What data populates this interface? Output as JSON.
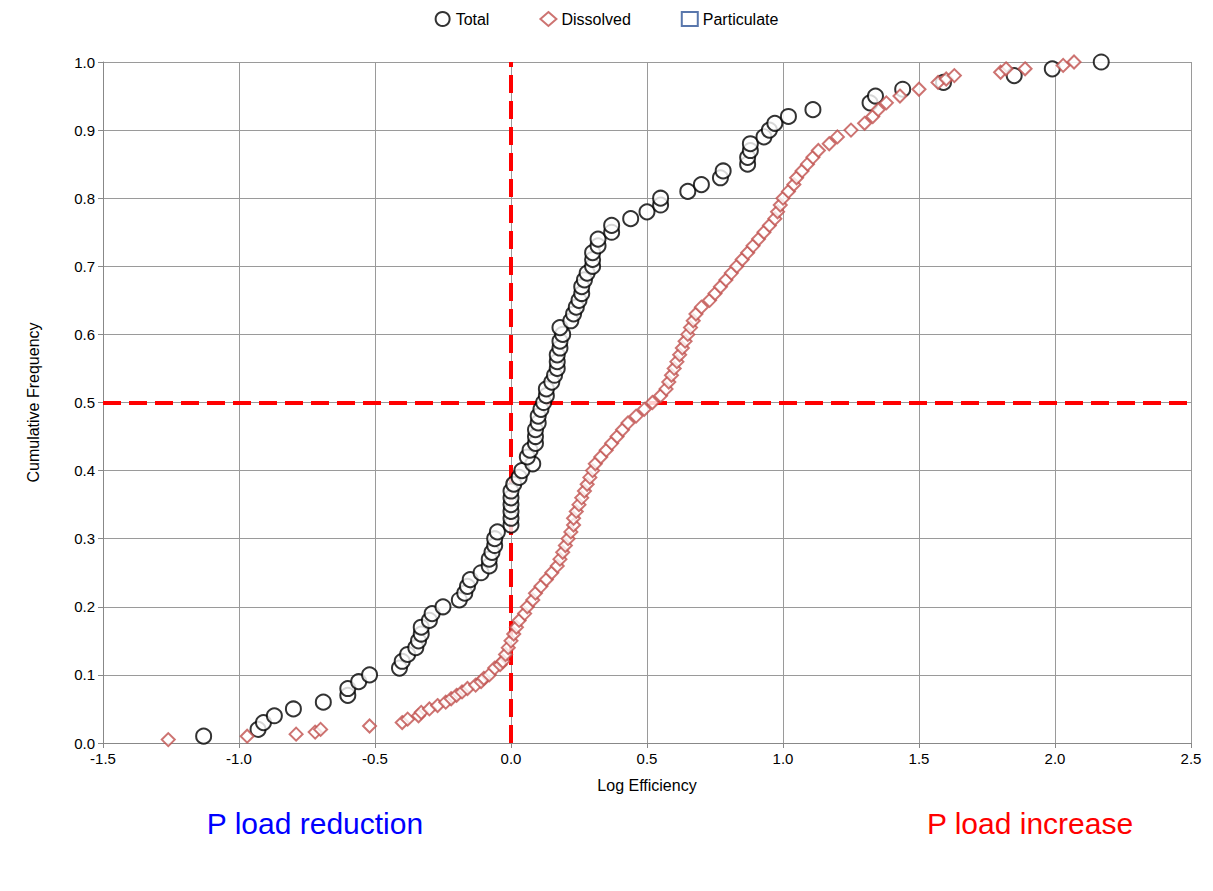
{
  "chart_data": {
    "type": "scatter",
    "xlabel": "Log Efficiency",
    "ylabel": "Cumulative Frequency",
    "xlim": [
      -1.5,
      2.5
    ],
    "xticks": [
      -1.5,
      {
        "value": -1.0,
        "label": "-1.0"
      },
      -0.5,
      {
        "value": 0.0,
        "label": "0.0"
      },
      0.5,
      {
        "value": 1.0,
        "label": "1.0"
      },
      1.5,
      {
        "value": 2.0,
        "label": "2.0"
      },
      2.5
    ],
    "ylim": [
      0,
      1
    ],
    "yticks": [
      {
        "value": 0.0,
        "label": "0.0"
      },
      0.1,
      0.2,
      0.3,
      0.4,
      0.5,
      0.6,
      0.7,
      0.8,
      0.9,
      {
        "value": 1.0,
        "label": "1.0"
      }
    ],
    "grid": true,
    "legend": "top",
    "reference_lines": {
      "x": [
        0
      ],
      "y": [
        0.5
      ]
    },
    "annotations": [
      {
        "text": "P load reduction",
        "color": "#0000ff"
      },
      {
        "text": "P load increase",
        "color": "#ff0000"
      }
    ],
    "series": [
      {
        "name": "Total",
        "color": "#000000",
        "marker": "circle",
        "x": [
          -1.13,
          -0.93,
          -0.91,
          -0.87,
          -0.8,
          -0.69,
          -0.6,
          -0.6,
          -0.56,
          -0.52,
          -0.41,
          -0.4,
          -0.38,
          -0.35,
          -0.34,
          -0.33,
          -0.33,
          -0.3,
          -0.29,
          -0.25,
          -0.19,
          -0.17,
          -0.16,
          -0.15,
          -0.11,
          -0.08,
          -0.08,
          -0.07,
          -0.06,
          -0.06,
          -0.05,
          0.0,
          0.0,
          0.0,
          0.0,
          0.0,
          0.0,
          0.01,
          0.03,
          0.04,
          0.08,
          0.06,
          0.07,
          0.09,
          0.09,
          0.09,
          0.1,
          0.1,
          0.11,
          0.12,
          0.13,
          0.13,
          0.15,
          0.16,
          0.17,
          0.17,
          0.17,
          0.18,
          0.18,
          0.19,
          0.18,
          0.22,
          0.23,
          0.24,
          0.25,
          0.26,
          0.26,
          0.27,
          0.28,
          0.3,
          0.3,
          0.3,
          0.32,
          0.32,
          0.37,
          0.37,
          0.44,
          0.5,
          0.55,
          0.55,
          0.65,
          0.7,
          0.77,
          0.78,
          0.87,
          0.87,
          0.88,
          0.88,
          0.93,
          0.95,
          0.97,
          1.02,
          1.11,
          1.32,
          1.34,
          1.44,
          1.59,
          1.85,
          1.99,
          2.17
        ],
        "values": [
          0.01,
          0.02,
          0.03,
          0.04,
          0.05,
          0.06,
          0.07,
          0.08,
          0.09,
          0.1,
          0.11,
          0.12,
          0.13,
          0.14,
          0.15,
          0.16,
          0.17,
          0.18,
          0.19,
          0.2,
          0.21,
          0.22,
          0.23,
          0.24,
          0.25,
          0.26,
          0.27,
          0.28,
          0.29,
          0.3,
          0.31,
          0.32,
          0.33,
          0.34,
          0.35,
          0.36,
          0.37,
          0.38,
          0.39,
          0.4,
          0.41,
          0.42,
          0.43,
          0.44,
          0.45,
          0.46,
          0.47,
          0.48,
          0.49,
          0.5,
          0.51,
          0.52,
          0.53,
          0.54,
          0.55,
          0.56,
          0.57,
          0.58,
          0.59,
          0.6,
          0.61,
          0.62,
          0.63,
          0.64,
          0.65,
          0.66,
          0.67,
          0.68,
          0.69,
          0.7,
          0.71,
          0.72,
          0.73,
          0.74,
          0.75,
          0.76,
          0.77,
          0.78,
          0.79,
          0.8,
          0.81,
          0.82,
          0.83,
          0.84,
          0.85,
          0.86,
          0.87,
          0.88,
          0.89,
          0.9,
          0.91,
          0.92,
          0.93,
          0.94,
          0.95,
          0.96,
          0.97,
          0.98,
          0.99,
          1.0
        ]
      },
      {
        "name": "Dissolved",
        "color": "#c0504d",
        "marker": "diamond",
        "x": [
          -1.26,
          -0.97,
          -0.79,
          -0.72,
          -0.7,
          -0.52,
          -0.4,
          -0.38,
          -0.34,
          -0.33,
          -0.3,
          -0.27,
          -0.24,
          -0.22,
          -0.2,
          -0.18,
          -0.16,
          -0.13,
          -0.11,
          -0.1,
          -0.08,
          -0.06,
          -0.04,
          -0.03,
          -0.02,
          -0.01,
          0.0,
          0.01,
          0.02,
          0.03,
          0.05,
          0.06,
          0.08,
          0.09,
          0.11,
          0.13,
          0.15,
          0.17,
          0.18,
          0.19,
          0.2,
          0.21,
          0.22,
          0.23,
          0.23,
          0.24,
          0.25,
          0.26,
          0.27,
          0.28,
          0.29,
          0.3,
          0.31,
          0.33,
          0.35,
          0.37,
          0.39,
          0.41,
          0.43,
          0.46,
          0.49,
          0.52,
          0.55,
          0.57,
          0.58,
          0.59,
          0.6,
          0.61,
          0.62,
          0.63,
          0.64,
          0.65,
          0.66,
          0.67,
          0.68,
          0.7,
          0.73,
          0.75,
          0.77,
          0.79,
          0.81,
          0.83,
          0.85,
          0.87,
          0.89,
          0.91,
          0.93,
          0.95,
          0.97,
          0.98,
          0.99,
          1.0,
          1.02,
          1.04,
          1.05,
          1.07,
          1.09,
          1.11,
          1.13,
          1.17,
          1.2,
          1.25,
          1.3,
          1.33,
          1.35,
          1.38,
          1.43,
          1.5,
          1.57,
          1.6,
          1.63,
          1.8,
          1.82,
          1.89,
          2.03,
          2.07
        ],
        "values": [
          0.005,
          0.01,
          0.013,
          0.016,
          0.02,
          0.025,
          0.03,
          0.035,
          0.04,
          0.045,
          0.05,
          0.055,
          0.06,
          0.065,
          0.07,
          0.075,
          0.08,
          0.085,
          0.09,
          0.095,
          0.1,
          0.11,
          0.115,
          0.12,
          0.13,
          0.14,
          0.15,
          0.16,
          0.17,
          0.18,
          0.19,
          0.2,
          0.21,
          0.22,
          0.23,
          0.24,
          0.25,
          0.26,
          0.27,
          0.28,
          0.29,
          0.3,
          0.31,
          0.32,
          0.33,
          0.34,
          0.35,
          0.36,
          0.37,
          0.38,
          0.39,
          0.4,
          0.41,
          0.42,
          0.43,
          0.44,
          0.45,
          0.46,
          0.47,
          0.48,
          0.49,
          0.5,
          0.51,
          0.52,
          0.53,
          0.54,
          0.55,
          0.56,
          0.57,
          0.58,
          0.59,
          0.6,
          0.61,
          0.62,
          0.63,
          0.64,
          0.65,
          0.66,
          0.67,
          0.68,
          0.69,
          0.7,
          0.71,
          0.72,
          0.73,
          0.74,
          0.75,
          0.76,
          0.77,
          0.78,
          0.79,
          0.8,
          0.81,
          0.82,
          0.83,
          0.84,
          0.85,
          0.86,
          0.87,
          0.88,
          0.89,
          0.9,
          0.91,
          0.92,
          0.93,
          0.94,
          0.95,
          0.96,
          0.97,
          0.975,
          0.98,
          0.985,
          0.99,
          0.99,
          0.995,
          1.0
        ]
      },
      {
        "name": "Particulate",
        "color": "#2f5597",
        "marker": "square",
        "x": [],
        "values": []
      }
    ]
  }
}
